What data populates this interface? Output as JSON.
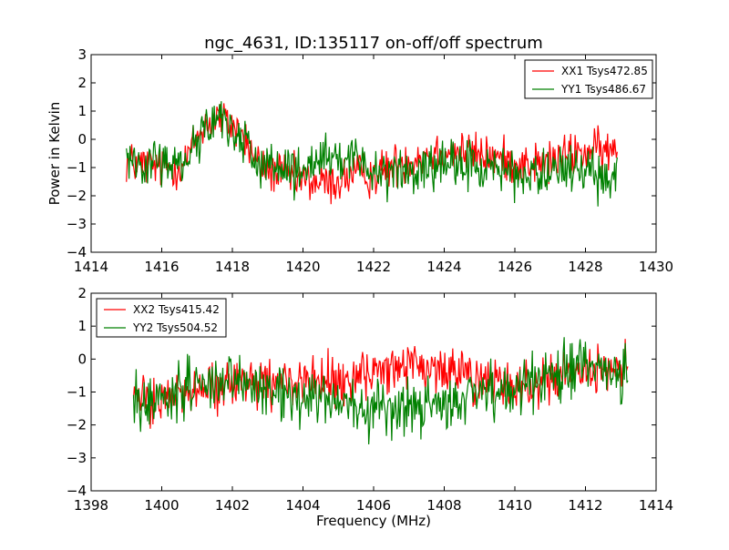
{
  "figure": {
    "title": "ngc_4631, ID:135117 on-off/off spectrum",
    "xlabel": "Frequency (MHz)"
  },
  "chart_data": [
    {
      "type": "line",
      "title": "ngc_4631, ID:135117 on-off/off spectrum",
      "xlabel": "",
      "ylabel": "Power in Kelvin",
      "xlim": [
        1414,
        1430
      ],
      "ylim": [
        -4,
        3
      ],
      "xticks": [
        1414,
        1416,
        1418,
        1420,
        1422,
        1424,
        1426,
        1428,
        1430
      ],
      "yticks": [
        -4,
        -3,
        -2,
        -1,
        0,
        1,
        2,
        3
      ],
      "grid": false,
      "legend_position": "top-right",
      "x_range": [
        1415.0,
        1428.9
      ],
      "series": [
        {
          "name": "XX1 Tsys472.85",
          "color": "#ff0000",
          "noise_amp": 0.55,
          "trend_x": [
            1415.0,
            1416.0,
            1416.6,
            1417.2,
            1417.6,
            1418.2,
            1418.8,
            1419.5,
            1420.2,
            1420.8,
            1421.5,
            1422.0,
            1422.6,
            1423.3,
            1424.0,
            1424.8,
            1425.6,
            1426.3,
            1427.0,
            1427.7,
            1428.4,
            1428.9
          ],
          "trend_y": [
            -0.8,
            -1.0,
            -0.9,
            0.5,
            0.8,
            0.3,
            -1.0,
            -1.3,
            -1.5,
            -1.6,
            -1.2,
            -1.3,
            -0.9,
            -0.6,
            -0.4,
            -0.5,
            -0.7,
            -0.9,
            -0.8,
            -0.5,
            -0.4,
            -0.5
          ]
        },
        {
          "name": "YY1 Tsys486.67",
          "color": "#008000",
          "noise_amp": 0.6,
          "trend_x": [
            1415.0,
            1416.0,
            1416.6,
            1417.2,
            1417.6,
            1418.2,
            1418.8,
            1419.5,
            1420.2,
            1420.8,
            1421.5,
            1422.0,
            1422.6,
            1423.3,
            1424.0,
            1424.8,
            1425.6,
            1426.3,
            1427.0,
            1427.7,
            1428.4,
            1428.9
          ],
          "trend_y": [
            -0.6,
            -0.9,
            -0.8,
            0.4,
            0.7,
            0.2,
            -0.9,
            -1.2,
            -1.1,
            -0.7,
            -0.8,
            -1.0,
            -1.1,
            -1.2,
            -1.0,
            -0.9,
            -1.1,
            -1.3,
            -1.2,
            -1.0,
            -1.4,
            -1.2
          ]
        }
      ]
    },
    {
      "type": "line",
      "title": "",
      "xlabel": "Frequency (MHz)",
      "ylabel": "",
      "xlim": [
        1398,
        1414
      ],
      "ylim": [
        -4,
        2
      ],
      "xticks": [
        1398,
        1400,
        1402,
        1404,
        1406,
        1408,
        1410,
        1412,
        1414
      ],
      "yticks": [
        -4,
        -3,
        -2,
        -1,
        0,
        1,
        2
      ],
      "grid": false,
      "legend_position": "top-left",
      "x_range": [
        1399.2,
        1413.2
      ],
      "series": [
        {
          "name": "XX2 Tsys415.42",
          "color": "#ff0000",
          "noise_amp": 0.55,
          "trend_x": [
            1399.2,
            1400.0,
            1401.0,
            1402.0,
            1403.0,
            1404.0,
            1405.0,
            1406.0,
            1407.0,
            1408.0,
            1409.0,
            1410.0,
            1411.0,
            1412.0,
            1413.2
          ],
          "trend_y": [
            -1.1,
            -1.2,
            -1.0,
            -0.8,
            -0.8,
            -0.6,
            -0.7,
            -0.5,
            -0.2,
            -0.3,
            -0.6,
            -1.0,
            -0.7,
            -0.3,
            -0.4
          ]
        },
        {
          "name": "YY2 Tsys504.52",
          "color": "#008000",
          "noise_amp": 0.6,
          "trend_x": [
            1399.2,
            1400.0,
            1401.0,
            1402.0,
            1403.0,
            1404.0,
            1405.0,
            1406.0,
            1407.0,
            1408.0,
            1409.0,
            1410.0,
            1411.0,
            1412.0,
            1413.2
          ],
          "trend_y": [
            -1.2,
            -1.2,
            -0.9,
            -0.7,
            -0.9,
            -1.2,
            -1.4,
            -1.5,
            -1.6,
            -1.3,
            -1.1,
            -0.8,
            -0.4,
            -0.2,
            -0.5
          ]
        }
      ]
    }
  ]
}
